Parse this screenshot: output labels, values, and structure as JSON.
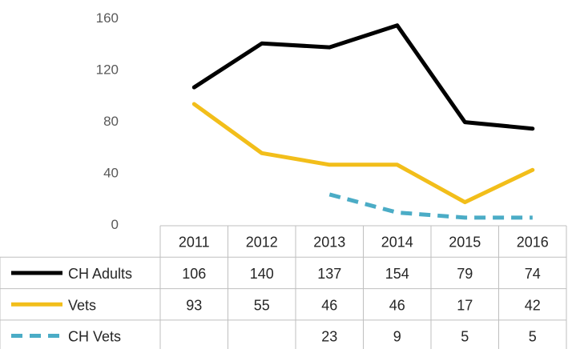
{
  "chart_data": {
    "type": "line",
    "categories": [
      "2011",
      "2012",
      "2013",
      "2014",
      "2015",
      "2016"
    ],
    "series": [
      {
        "name": "CH Adults",
        "values": [
          106,
          140,
          137,
          154,
          79,
          74
        ],
        "color": "#000000",
        "dash": "solid"
      },
      {
        "name": "Vets",
        "values": [
          93,
          55,
          46,
          46,
          17,
          42
        ],
        "color": "#f2be1a",
        "dash": "solid"
      },
      {
        "name": "CH Vets",
        "values": [
          null,
          null,
          23,
          9,
          5,
          5
        ],
        "color": "#4bacc6",
        "dash": "dashed"
      }
    ],
    "yticks": [
      "0",
      "40",
      "80",
      "120",
      "160"
    ],
    "ylim": [
      0,
      160
    ],
    "grid": false,
    "legend": "data-table",
    "title": "",
    "xlabel": "",
    "ylabel": ""
  }
}
